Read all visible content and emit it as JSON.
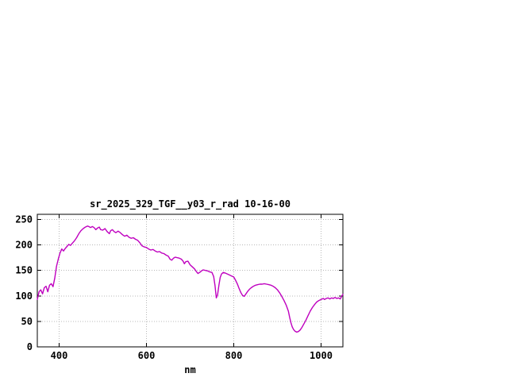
{
  "window": {
    "background": "#ffffff"
  },
  "chart_data": {
    "type": "line",
    "title": "sr_2025_329_TGF__y03_r_rad 10-16-00",
    "xlabel": "nm",
    "ylabel": "",
    "xlim": [
      350,
      1050
    ],
    "ylim": [
      0,
      260
    ],
    "xticks": [
      400,
      600,
      800,
      1000
    ],
    "yticks": [
      0,
      50,
      100,
      150,
      200,
      250
    ],
    "grid": true,
    "legend_position": "none",
    "line_color": "#bf00bf",
    "grid_color": "#b8b8b8",
    "axis_color": "#000000",
    "series": [
      {
        "name": "",
        "x": [
          350,
          354,
          358,
          362,
          366,
          370,
          374,
          378,
          382,
          386,
          390,
          394,
          398,
          402,
          406,
          410,
          414,
          418,
          422,
          426,
          430,
          435,
          440,
          445,
          450,
          455,
          460,
          465,
          468,
          472,
          476,
          480,
          484,
          488,
          492,
          495,
          500,
          505,
          510,
          515,
          518,
          522,
          526,
          530,
          535,
          540,
          545,
          550,
          555,
          560,
          565,
          570,
          575,
          580,
          585,
          590,
          595,
          600,
          605,
          610,
          615,
          620,
          625,
          630,
          635,
          640,
          645,
          650,
          654,
          658,
          662,
          666,
          670,
          675,
          680,
          684,
          687,
          690,
          695,
          700,
          705,
          710,
          714,
          718,
          722,
          726,
          730,
          735,
          740,
          745,
          750,
          754,
          757,
          760,
          763,
          766,
          769,
          772,
          776,
          780,
          785,
          790,
          795,
          800,
          804,
          808,
          812,
          816,
          820,
          824,
          828,
          832,
          836,
          840,
          845,
          850,
          855,
          860,
          865,
          870,
          875,
          880,
          885,
          890,
          895,
          900,
          905,
          910,
          915,
          920,
          925,
          928,
          931,
          934,
          937,
          940,
          944,
          948,
          952,
          956,
          960,
          965,
          970,
          975,
          980,
          985,
          990,
          995,
          1000,
          1005,
          1008,
          1012,
          1016,
          1020,
          1024,
          1028,
          1032,
          1036,
          1040,
          1044,
          1047,
          1050
        ],
        "y": [
          93,
          108,
          112,
          104,
          116,
          119,
          108,
          121,
          124,
          118,
          135,
          158,
          172,
          184,
          192,
          188,
          193,
          197,
          201,
          199,
          203,
          208,
          214,
          222,
          228,
          232,
          235,
          237,
          236,
          234,
          236,
          234,
          230,
          233,
          235,
          230,
          229,
          232,
          226,
          222,
          228,
          230,
          226,
          224,
          227,
          224,
          220,
          217,
          219,
          215,
          213,
          214,
          211,
          209,
          204,
          198,
          196,
          195,
          192,
          190,
          191,
          188,
          186,
          187,
          184,
          183,
          180,
          178,
          172,
          170,
          174,
          176,
          175,
          174,
          172,
          168,
          163,
          167,
          168,
          161,
          157,
          153,
          148,
          144,
          146,
          149,
          151,
          150,
          149,
          147,
          146,
          138,
          120,
          96,
          102,
          121,
          136,
          143,
          146,
          145,
          143,
          141,
          139,
          137,
          131,
          124,
          115,
          107,
          101,
          99,
          104,
          109,
          113,
          116,
          119,
          121,
          122,
          123,
          123,
          124,
          123,
          122,
          121,
          119,
          116,
          112,
          106,
          99,
          91,
          82,
          70,
          58,
          47,
          39,
          34,
          31,
          29,
          30,
          33,
          38,
          44,
          52,
          61,
          70,
          77,
          83,
          88,
          91,
          93,
          95,
          93,
          95,
          96,
          94,
          96,
          95,
          97,
          95,
          96,
          94,
          99,
          103
        ]
      }
    ]
  }
}
